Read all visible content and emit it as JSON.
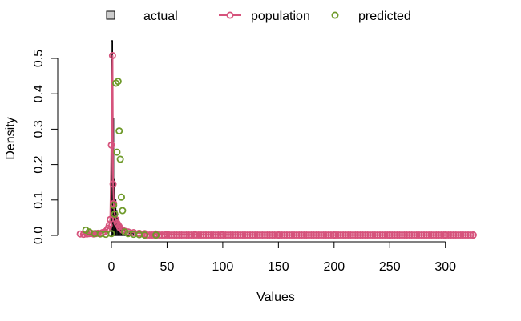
{
  "chart_data": {
    "type": "line",
    "xlabel": "Values",
    "ylabel": "Density",
    "xlim": [
      -35,
      330
    ],
    "ylim": [
      0,
      0.55
    ],
    "x_ticks": [
      0,
      50,
      100,
      150,
      200,
      250,
      300
    ],
    "y_ticks": [
      0.0,
      0.1,
      0.2,
      0.3,
      0.4,
      0.5
    ],
    "x_tick_labels": [
      "0",
      "50",
      "100",
      "150",
      "200",
      "250",
      "300"
    ],
    "y_tick_labels": [
      "0.0",
      "0.1",
      "0.2",
      "0.3",
      "0.4",
      "0.5"
    ],
    "grid": false,
    "legend_position": "top",
    "legend": [
      {
        "label": "actual",
        "symbol": "box",
        "color": "#000000",
        "fill": "#cccccc"
      },
      {
        "label": "population",
        "symbol": "line-circle",
        "color": "#d6537c"
      },
      {
        "label": "predicted",
        "symbol": "circle",
        "color": "#6e9a2a"
      }
    ],
    "series": [
      {
        "name": "actual",
        "kind": "histogram",
        "color": "#000000",
        "bins": [
          {
            "x0": 0,
            "x1": 1,
            "y": 0.55
          },
          {
            "x0": 1,
            "x1": 2,
            "y": 0.33
          },
          {
            "x0": 2,
            "x1": 3,
            "y": 0.16
          },
          {
            "x0": 3,
            "x1": 4,
            "y": 0.1
          },
          {
            "x0": 4,
            "x1": 5,
            "y": 0.07
          },
          {
            "x0": 5,
            "x1": 6,
            "y": 0.05
          },
          {
            "x0": 6,
            "x1": 7,
            "y": 0.04
          },
          {
            "x0": 7,
            "x1": 8,
            "y": 0.03
          },
          {
            "x0": 8,
            "x1": 9,
            "y": 0.025
          },
          {
            "x0": 9,
            "x1": 10,
            "y": 0.02
          },
          {
            "x0": 10,
            "x1": 12,
            "y": 0.016
          },
          {
            "x0": 12,
            "x1": 14,
            "y": 0.012
          },
          {
            "x0": 14,
            "x1": 16,
            "y": 0.009
          },
          {
            "x0": 16,
            "x1": 18,
            "y": 0.007
          },
          {
            "x0": 18,
            "x1": 20,
            "y": 0.005
          }
        ]
      },
      {
        "name": "population",
        "color": "#d6537c",
        "x": [
          -28,
          -25,
          -22,
          -20,
          -18,
          -16,
          -14,
          -12,
          -10,
          -8,
          -6,
          -4,
          -3,
          -2,
          -1,
          0,
          1,
          1.5,
          2,
          3,
          4,
          5,
          6,
          7,
          8,
          10,
          12,
          15,
          20,
          25,
          30,
          40,
          50,
          75,
          100,
          150,
          200,
          250,
          300,
          325
        ],
        "y": [
          0.004,
          0.003,
          0.004,
          0.005,
          0.006,
          0.004,
          0.005,
          0.006,
          0.005,
          0.008,
          0.01,
          0.015,
          0.02,
          0.028,
          0.045,
          0.255,
          0.508,
          0.145,
          0.09,
          0.06,
          0.045,
          0.035,
          0.03,
          0.025,
          0.02,
          0.015,
          0.012,
          0.01,
          0.008,
          0.006,
          0.005,
          0.004,
          0.003,
          0.002,
          0.002,
          0.001,
          0.001,
          0.001,
          0.001,
          0.001
        ]
      },
      {
        "name": "predicted",
        "color": "#6e9a2a",
        "x": [
          -23,
          -20,
          -15,
          -10,
          -5,
          0,
          2,
          3,
          4,
          5,
          6,
          7,
          8,
          9,
          10,
          12,
          15,
          20,
          25,
          30,
          40
        ],
        "y": [
          0.015,
          0.01,
          0.005,
          0.004,
          0.003,
          0.005,
          0.085,
          0.06,
          0.43,
          0.235,
          0.435,
          0.295,
          0.215,
          0.108,
          0.07,
          0.01,
          0.005,
          0.003,
          0.002,
          0.001,
          0.001
        ]
      }
    ]
  }
}
